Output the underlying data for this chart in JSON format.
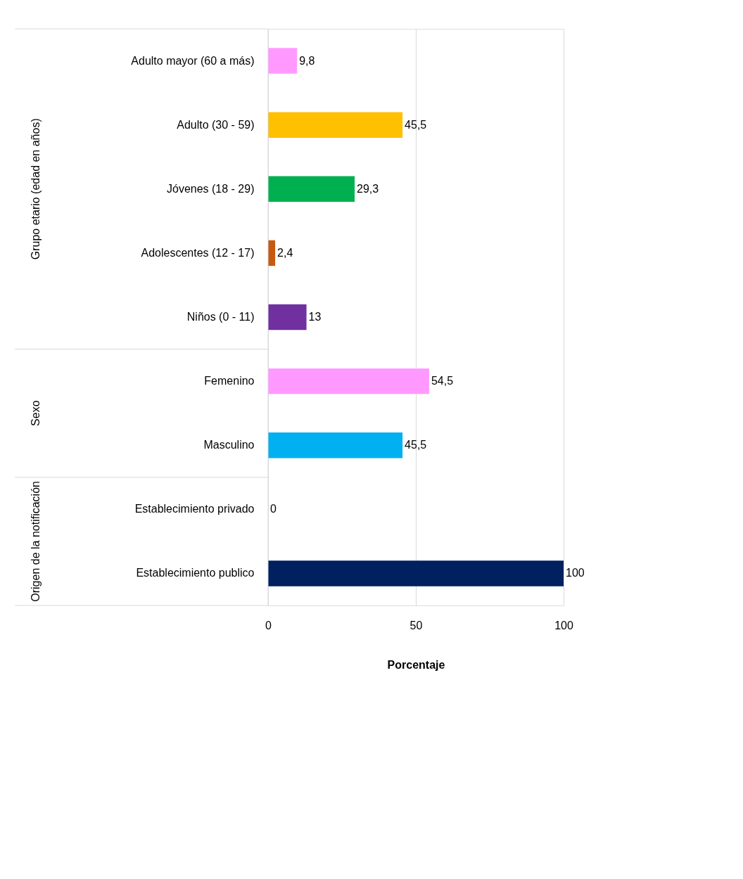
{
  "chart_data": {
    "type": "bar",
    "orientation": "horizontal",
    "xlabel": "Porcentaje",
    "categories": [
      "Adulto mayor (60 a más)",
      "Adulto (30 - 59)",
      "Jóvenes (18 - 29)",
      "Adolescentes (12 - 17)",
      "Niños (0 - 11)",
      "Femenino",
      "Masculino",
      "Establecimiento privado",
      "Establecimiento publico"
    ],
    "values": [
      9.8,
      45.5,
      29.3,
      2.4,
      13,
      54.5,
      45.5,
      0,
      100
    ],
    "value_labels": [
      "9,8",
      "45,5",
      "29,3",
      "2,4",
      "13",
      "54,5",
      "45,5",
      "0",
      "100"
    ],
    "colors": [
      "#ff99ff",
      "#ffc000",
      "#00b050",
      "#c55a11",
      "#7030a0",
      "#ff99ff",
      "#00b0f0",
      "#2f5597",
      "#002060"
    ],
    "xlim": [
      0,
      100
    ],
    "xticks": [
      0,
      50,
      100
    ],
    "grid": "x",
    "annotations": [
      "Grupo etario (edad en años)",
      "Sexo",
      "Origen de la notificación"
    ]
  }
}
